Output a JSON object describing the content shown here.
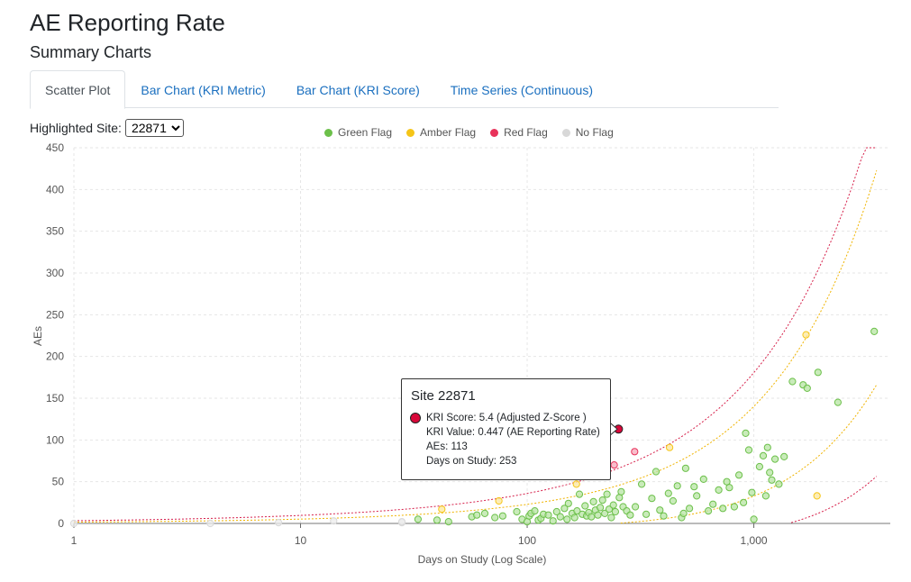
{
  "header": {
    "title": "AE Reporting Rate",
    "subtitle": "Summary Charts"
  },
  "tabs": [
    {
      "label": "Scatter Plot",
      "active": true
    },
    {
      "label": "Bar Chart (KRI Metric)",
      "active": false
    },
    {
      "label": "Bar Chart (KRI Score)",
      "active": false
    },
    {
      "label": "Time Series (Continuous)",
      "active": false
    }
  ],
  "site_select": {
    "label": "Highlighted Site:",
    "value": "22871"
  },
  "legend": [
    {
      "label": "Green Flag",
      "color": "#6cc04a"
    },
    {
      "label": "Amber Flag",
      "color": "#f5c518"
    },
    {
      "label": "Red Flag",
      "color": "#e8325a"
    },
    {
      "label": "No Flag",
      "color": "#d8d8d8"
    }
  ],
  "tooltip": {
    "title": "Site 22871",
    "lines": [
      "KRI Score: 5.4 (Adjusted Z-Score )",
      "KRI Value: 0.447 (AE Reporting Rate)",
      "AEs: 113",
      "Days on Study: 253"
    ]
  },
  "chart_data": {
    "type": "scatter",
    "xlabel": "Days on Study (Log Scale)",
    "ylabel": "AEs",
    "x_scale": "log",
    "xlim": [
      1,
      4000
    ],
    "ylim": [
      0,
      450
    ],
    "x_ticks": [
      1,
      10,
      100,
      1000
    ],
    "x_tick_labels": [
      "1",
      "10",
      "100",
      "1,000"
    ],
    "y_ticks": [
      0,
      50,
      100,
      150,
      200,
      250,
      300,
      350,
      400,
      450
    ],
    "grid": true,
    "legend_position": "top-center",
    "highlight": {
      "site": "22871",
      "x": 253,
      "y": 113,
      "flag": "red"
    },
    "series": [
      {
        "name": "No Flag",
        "color": "#d8d8d8",
        "points": [
          [
            1,
            0
          ],
          [
            4,
            0
          ],
          [
            8,
            1
          ],
          [
            14,
            3
          ],
          [
            28,
            1
          ],
          [
            28,
            2
          ]
        ]
      },
      {
        "name": "Green Flag",
        "color": "#6cc04a",
        "points": [
          [
            33,
            5
          ],
          [
            40,
            4
          ],
          [
            45,
            2
          ],
          [
            57,
            8
          ],
          [
            60,
            10
          ],
          [
            65,
            12
          ],
          [
            72,
            7
          ],
          [
            78,
            9
          ],
          [
            90,
            14
          ],
          [
            95,
            5
          ],
          [
            100,
            2
          ],
          [
            102,
            9
          ],
          [
            104,
            12
          ],
          [
            108,
            15
          ],
          [
            112,
            4
          ],
          [
            115,
            6
          ],
          [
            118,
            11
          ],
          [
            124,
            10
          ],
          [
            130,
            3
          ],
          [
            135,
            14
          ],
          [
            140,
            8
          ],
          [
            146,
            18
          ],
          [
            150,
            5
          ],
          [
            152,
            24
          ],
          [
            158,
            12
          ],
          [
            162,
            7
          ],
          [
            166,
            15
          ],
          [
            170,
            35
          ],
          [
            175,
            11
          ],
          [
            180,
            21
          ],
          [
            183,
            9
          ],
          [
            187,
            13
          ],
          [
            192,
            8
          ],
          [
            196,
            26
          ],
          [
            200,
            16
          ],
          [
            205,
            10
          ],
          [
            210,
            19
          ],
          [
            215,
            28
          ],
          [
            220,
            12
          ],
          [
            225,
            35
          ],
          [
            230,
            17
          ],
          [
            235,
            7
          ],
          [
            240,
            22
          ],
          [
            245,
            14
          ],
          [
            255,
            31
          ],
          [
            260,
            38
          ],
          [
            265,
            20
          ],
          [
            275,
            15
          ],
          [
            285,
            10
          ],
          [
            300,
            20
          ],
          [
            320,
            47
          ],
          [
            335,
            11
          ],
          [
            355,
            30
          ],
          [
            370,
            62
          ],
          [
            385,
            16
          ],
          [
            400,
            9
          ],
          [
            420,
            36
          ],
          [
            440,
            27
          ],
          [
            460,
            45
          ],
          [
            480,
            7
          ],
          [
            490,
            12
          ],
          [
            500,
            66
          ],
          [
            520,
            18
          ],
          [
            545,
            44
          ],
          [
            560,
            33
          ],
          [
            600,
            53
          ],
          [
            630,
            15
          ],
          [
            660,
            23
          ],
          [
            700,
            40
          ],
          [
            730,
            18
          ],
          [
            760,
            50
          ],
          [
            780,
            43
          ],
          [
            820,
            20
          ],
          [
            860,
            58
          ],
          [
            900,
            25
          ],
          [
            920,
            108
          ],
          [
            950,
            88
          ],
          [
            980,
            37
          ],
          [
            1000,
            5
          ],
          [
            1060,
            68
          ],
          [
            1100,
            81
          ],
          [
            1130,
            33
          ],
          [
            1150,
            91
          ],
          [
            1175,
            61
          ],
          [
            1200,
            52
          ],
          [
            1240,
            77
          ],
          [
            1290,
            47
          ],
          [
            1360,
            80
          ],
          [
            1480,
            170
          ],
          [
            1650,
            166
          ],
          [
            1720,
            162
          ],
          [
            1920,
            181
          ],
          [
            2350,
            145
          ],
          [
            3400,
            230
          ]
        ]
      },
      {
        "name": "Amber Flag",
        "color": "#f5c518",
        "points": [
          [
            42,
            17
          ],
          [
            75,
            27
          ],
          [
            165,
            47
          ],
          [
            425,
            91
          ],
          [
            1700,
            226
          ],
          [
            1900,
            33
          ]
        ]
      },
      {
        "name": "Red Flag",
        "color": "#e8325a",
        "points": [
          [
            242,
            70
          ],
          [
            298,
            86
          ]
        ]
      }
    ],
    "threshold_curves": [
      {
        "flag": "red",
        "side": "upper",
        "color": "#d6204a"
      },
      {
        "flag": "amber",
        "side": "upper",
        "color": "#f0b400"
      },
      {
        "flag": "amber",
        "side": "lower",
        "color": "#f0b400"
      },
      {
        "flag": "red",
        "side": "lower",
        "color": "#d6204a"
      }
    ]
  }
}
